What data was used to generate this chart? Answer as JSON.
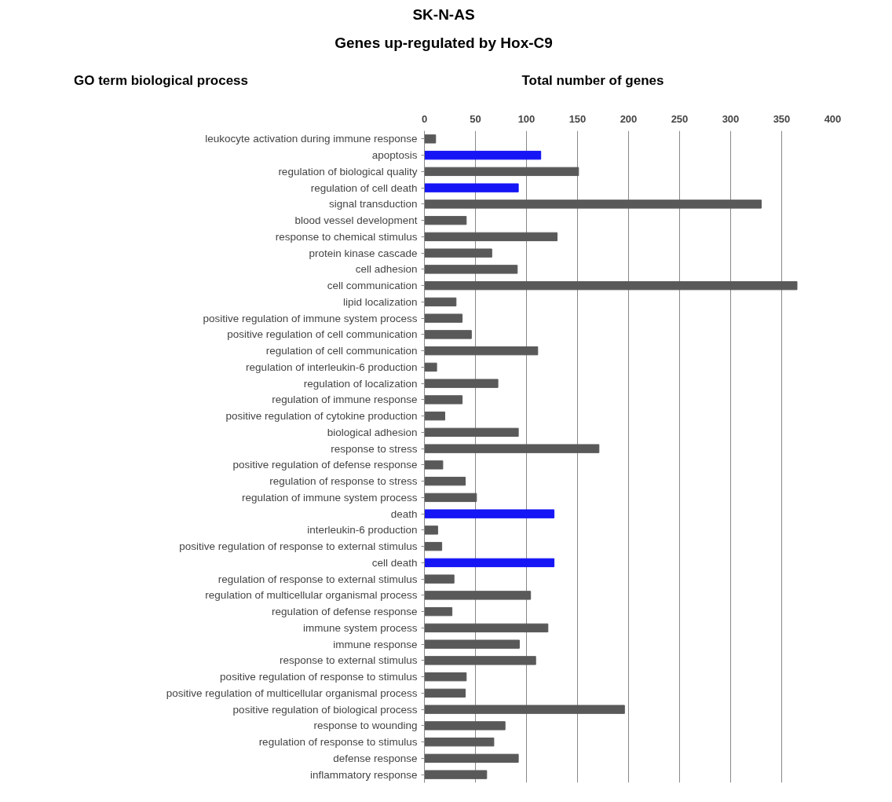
{
  "chart_data": {
    "type": "bar",
    "orientation": "horizontal",
    "title": "SK-N-AS",
    "subtitle": "Genes up-regulated by Hox-C9",
    "xlabel": "Total number of genes",
    "ylabel": "GO term biological process",
    "categories": [
      "leukocyte activation during immune response",
      "apoptosis",
      "regulation of biological quality",
      "regulation of cell death",
      "signal transduction",
      "blood vessel development",
      "response to chemical stimulus",
      "protein kinase cascade",
      "cell adhesion",
      "cell communication",
      "lipid localization",
      "positive regulation of immune system process",
      "positive regulation of cell communication",
      "regulation of cell communication",
      "regulation of interleukin-6 production",
      "regulation of localization",
      "regulation of immune response",
      "positive regulation of cytokine production",
      "biological adhesion",
      "response to stress",
      "positive regulation of defense response",
      "regulation of response to stress",
      "regulation of immune system process",
      "death",
      "interleukin-6 production",
      "positive regulation of response to external stimulus",
      "cell death",
      "regulation of response to external stimulus",
      "regulation of multicellular organismal process",
      "regulation of defense response",
      "immune system process",
      "immune response",
      "response to external stimulus",
      "positive regulation of response to stimulus",
      "positive regulation of multicellular organismal process",
      "positive regulation of biological process",
      "response to wounding",
      "regulation of response to stimulus",
      "defense response",
      "inflammatory response"
    ],
    "values": [
      11,
      114,
      151,
      92,
      330,
      41,
      130,
      66,
      91,
      365,
      31,
      37,
      46,
      111,
      12,
      72,
      37,
      20,
      92,
      171,
      18,
      40,
      51,
      127,
      13,
      17,
      127,
      29,
      104,
      27,
      121,
      93,
      109,
      41,
      40,
      196,
      79,
      68,
      92,
      61
    ],
    "colors": [
      "#595959",
      "#1515f5",
      "#595959",
      "#1515f5",
      "#595959",
      "#595959",
      "#595959",
      "#595959",
      "#595959",
      "#595959",
      "#595959",
      "#595959",
      "#595959",
      "#595959",
      "#595959",
      "#595959",
      "#595959",
      "#595959",
      "#595959",
      "#595959",
      "#595959",
      "#595959",
      "#595959",
      "#1515f5",
      "#595959",
      "#595959",
      "#1515f5",
      "#595959",
      "#595959",
      "#595959",
      "#595959",
      "#595959",
      "#595959",
      "#595959",
      "#595959",
      "#595959",
      "#595959",
      "#595959",
      "#595959",
      "#595959"
    ],
    "xlim": [
      0,
      400
    ],
    "xticks": [
      0,
      50,
      100,
      150,
      200,
      250,
      300,
      350,
      400
    ],
    "grid": "x"
  }
}
